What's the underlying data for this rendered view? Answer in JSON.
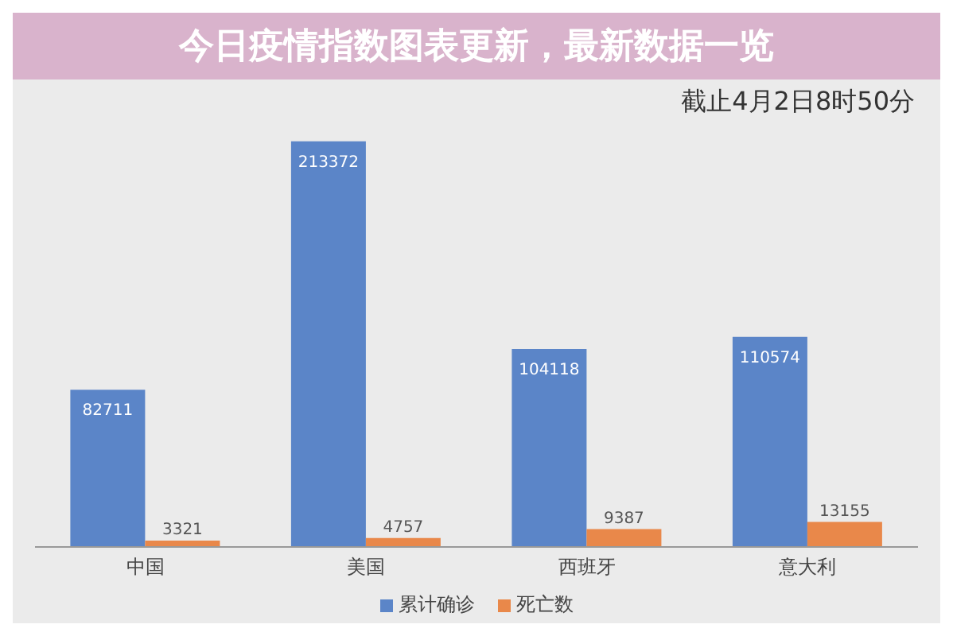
{
  "chart_data": {
    "type": "bar",
    "title": "今日疫情指数图表更新，最新数据一览",
    "subtitle": "截止4月2日8时50分",
    "categories": [
      "中国",
      "美国",
      "西班牙",
      "意大利"
    ],
    "series": [
      {
        "name": "累计确诊",
        "color": "#5b85c8",
        "values": [
          82711,
          213372,
          104118,
          110574
        ]
      },
      {
        "name": "死亡数",
        "color": "#e9884a",
        "values": [
          3321,
          4757,
          9387,
          13155
        ]
      }
    ],
    "tick_labels": "x",
    "legend": "bottom",
    "data_labels": true
  }
}
